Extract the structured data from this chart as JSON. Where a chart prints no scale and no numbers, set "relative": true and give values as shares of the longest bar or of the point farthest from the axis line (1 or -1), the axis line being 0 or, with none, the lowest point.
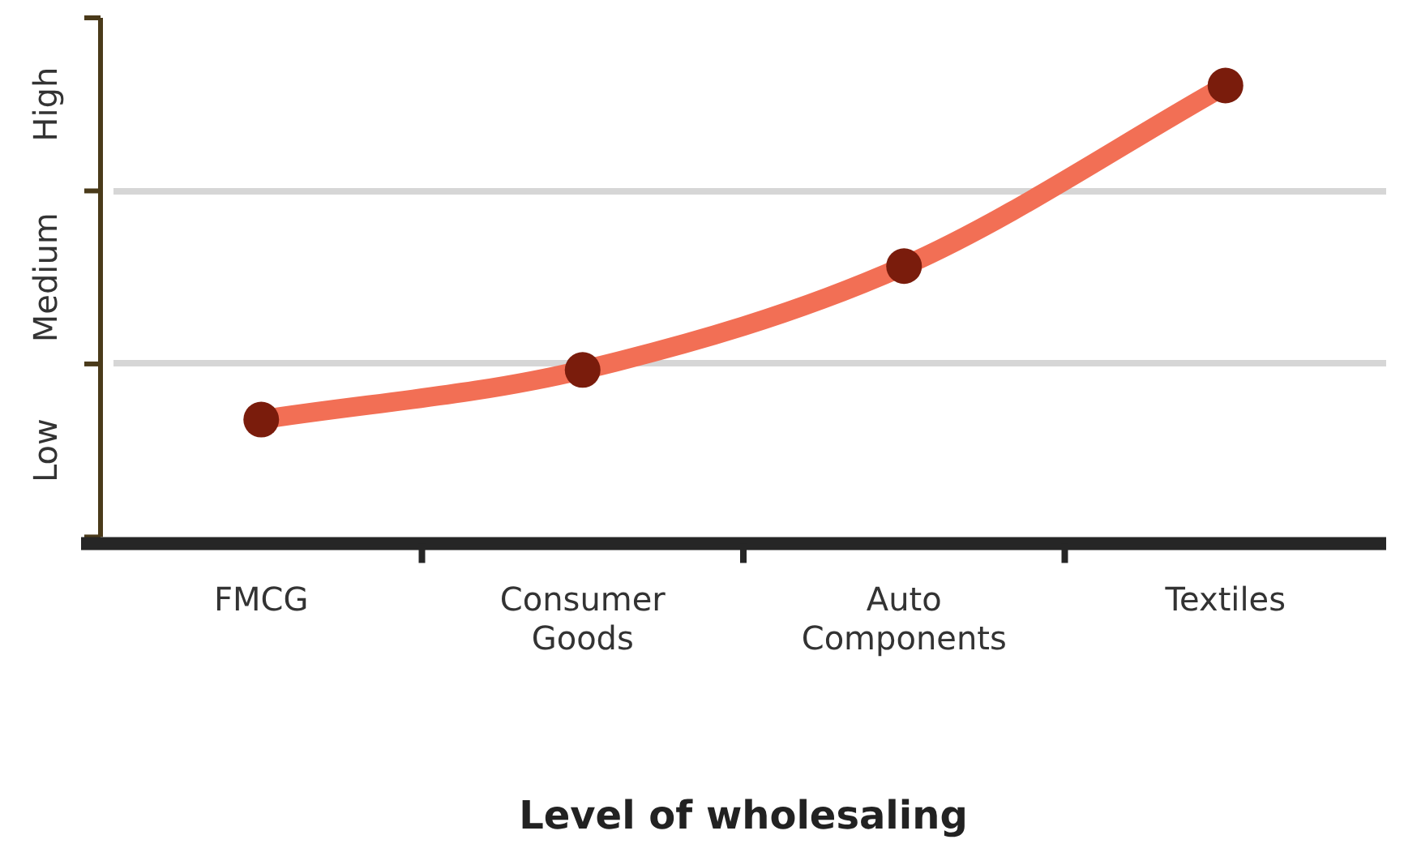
{
  "chart_data": {
    "type": "line",
    "xlabel": "Level of wholesaling",
    "relative": true,
    "categories": [
      "FMCG",
      "Consumer Goods",
      "Auto Components",
      "Textiles"
    ],
    "series": [
      {
        "color": "#f26f55",
        "values": [
          0.26,
          0.37,
          0.6,
          1
        ]
      }
    ],
    "annotations": [
      "Low",
      "Medium",
      "High"
    ],
    "marker": "circle",
    "legend": false
  }
}
